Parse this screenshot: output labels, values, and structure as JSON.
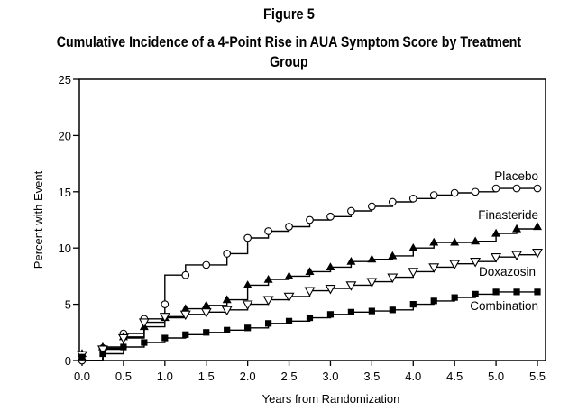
{
  "figure_label": "Figure 5",
  "chart_data": {
    "type": "line",
    "title": "Cumulative Incidence of a 4-Point Rise in AUA Symptom Score by Treatment Group",
    "xlabel": "Years from Randomization",
    "ylabel": "Percent with Event",
    "xlim": [
      0,
      5.5
    ],
    "ylim": [
      0,
      25
    ],
    "x_ticks": [
      0.0,
      0.5,
      1.0,
      1.5,
      2.0,
      2.5,
      3.0,
      3.5,
      4.0,
      4.5,
      5.0,
      5.5
    ],
    "x_tick_labels": [
      "0.0",
      "0.5",
      "1.0",
      "1.5",
      "2.0",
      "2.5",
      "3.0",
      "3.5",
      "4.0",
      "4.5",
      "5.0",
      "5.5"
    ],
    "y_ticks": [
      0,
      5,
      10,
      15,
      20,
      25
    ],
    "y_tick_labels": [
      "0",
      "5",
      "10",
      "15",
      "20",
      "25"
    ],
    "grid": false,
    "line_style": "step",
    "series": [
      {
        "name": "Placebo",
        "marker": "open-circle",
        "steps": [
          [
            0,
            0
          ],
          [
            0.25,
            1.1
          ],
          [
            0.5,
            2.4
          ],
          [
            0.75,
            3.7
          ],
          [
            1.0,
            5.0
          ],
          [
            1.0,
            7.6
          ],
          [
            1.25,
            7.6
          ],
          [
            1.25,
            8.5
          ],
          [
            1.5,
            8.5
          ],
          [
            1.75,
            9.5
          ],
          [
            2.0,
            10.9
          ],
          [
            2.25,
            11.5
          ],
          [
            2.5,
            11.9
          ],
          [
            2.75,
            12.5
          ],
          [
            3.0,
            12.8
          ],
          [
            3.25,
            13.3
          ],
          [
            3.5,
            13.7
          ],
          [
            3.75,
            14.1
          ],
          [
            4.0,
            14.4
          ],
          [
            4.25,
            14.7
          ],
          [
            4.5,
            14.9
          ],
          [
            4.75,
            15.0
          ],
          [
            5.0,
            15.3
          ],
          [
            5.5,
            15.3
          ]
        ],
        "points": [
          [
            0,
            0
          ],
          [
            0.25,
            1.1
          ],
          [
            0.5,
            2.4
          ],
          [
            0.75,
            3.7
          ],
          [
            1.0,
            5.0
          ],
          [
            1.25,
            7.6
          ],
          [
            1.5,
            8.5
          ],
          [
            1.75,
            9.5
          ],
          [
            2.0,
            10.9
          ],
          [
            2.25,
            11.5
          ],
          [
            2.5,
            11.9
          ],
          [
            2.75,
            12.5
          ],
          [
            3.0,
            12.8
          ],
          [
            3.25,
            13.3
          ],
          [
            3.5,
            13.7
          ],
          [
            3.75,
            14.1
          ],
          [
            4.0,
            14.4
          ],
          [
            4.25,
            14.7
          ],
          [
            4.5,
            14.9
          ],
          [
            4.75,
            15.0
          ],
          [
            5.0,
            15.3
          ],
          [
            5.25,
            15.3
          ],
          [
            5.5,
            15.3
          ]
        ]
      },
      {
        "name": "Finasteride",
        "marker": "filled-triangle-up",
        "steps": [
          [
            0,
            0
          ],
          [
            0.25,
            1.2
          ],
          [
            0.5,
            2.1
          ],
          [
            0.75,
            3.0
          ],
          [
            1.0,
            3.8
          ],
          [
            1.25,
            4.6
          ],
          [
            1.5,
            4.9
          ],
          [
            1.75,
            5.4
          ],
          [
            2.0,
            6.7
          ],
          [
            2.25,
            7.2
          ],
          [
            2.5,
            7.5
          ],
          [
            2.75,
            7.9
          ],
          [
            3.0,
            8.3
          ],
          [
            3.25,
            8.8
          ],
          [
            3.5,
            9.0
          ],
          [
            3.75,
            9.3
          ],
          [
            4.0,
            10.0
          ],
          [
            4.25,
            10.5
          ],
          [
            4.5,
            10.5
          ],
          [
            4.75,
            10.6
          ],
          [
            5.0,
            11.3
          ],
          [
            5.25,
            11.7
          ],
          [
            5.5,
            11.9
          ]
        ],
        "points": [
          [
            0,
            0.6
          ],
          [
            0.25,
            1.2
          ],
          [
            0.5,
            2.1
          ],
          [
            0.75,
            3.0
          ],
          [
            1.0,
            3.8
          ],
          [
            1.25,
            4.6
          ],
          [
            1.5,
            4.9
          ],
          [
            1.75,
            5.4
          ],
          [
            2.0,
            6.7
          ],
          [
            2.25,
            7.2
          ],
          [
            2.5,
            7.5
          ],
          [
            2.75,
            7.9
          ],
          [
            3.0,
            8.3
          ],
          [
            3.25,
            8.8
          ],
          [
            3.5,
            9.0
          ],
          [
            3.75,
            9.3
          ],
          [
            4.0,
            10.0
          ],
          [
            4.25,
            10.5
          ],
          [
            4.5,
            10.5
          ],
          [
            4.75,
            10.6
          ],
          [
            5.0,
            11.3
          ],
          [
            5.25,
            11.7
          ],
          [
            5.5,
            11.9
          ]
        ]
      },
      {
        "name": "Doxazosin",
        "marker": "open-triangle-down",
        "steps": [
          [
            0,
            0
          ],
          [
            0.25,
            1.0
          ],
          [
            0.5,
            2.0
          ],
          [
            0.75,
            3.4
          ],
          [
            1.0,
            3.9
          ],
          [
            1.25,
            4.1
          ],
          [
            1.5,
            4.3
          ],
          [
            1.75,
            4.5
          ],
          [
            2.0,
            5.0
          ],
          [
            2.25,
            5.4
          ],
          [
            2.5,
            5.7
          ],
          [
            2.75,
            6.2
          ],
          [
            3.0,
            6.4
          ],
          [
            3.25,
            6.7
          ],
          [
            3.5,
            7.0
          ],
          [
            3.75,
            7.4
          ],
          [
            4.0,
            7.9
          ],
          [
            4.25,
            8.3
          ],
          [
            4.5,
            8.6
          ],
          [
            4.75,
            8.8
          ],
          [
            5.0,
            9.2
          ],
          [
            5.25,
            9.4
          ],
          [
            5.5,
            9.6
          ]
        ],
        "points": [
          [
            0,
            0.5
          ],
          [
            0.25,
            1.0
          ],
          [
            0.5,
            2.0
          ],
          [
            0.75,
            3.4
          ],
          [
            1.0,
            3.9
          ],
          [
            1.25,
            4.1
          ],
          [
            1.5,
            4.3
          ],
          [
            1.75,
            4.5
          ],
          [
            2.0,
            5.0
          ],
          [
            2.25,
            5.4
          ],
          [
            2.5,
            5.7
          ],
          [
            2.75,
            6.2
          ],
          [
            3.0,
            6.4
          ],
          [
            3.25,
            6.7
          ],
          [
            3.5,
            7.0
          ],
          [
            3.75,
            7.4
          ],
          [
            4.0,
            7.9
          ],
          [
            4.25,
            8.3
          ],
          [
            4.5,
            8.6
          ],
          [
            4.75,
            8.8
          ],
          [
            5.0,
            9.2
          ],
          [
            5.25,
            9.4
          ],
          [
            5.5,
            9.6
          ]
        ]
      },
      {
        "name": "Combination",
        "marker": "filled-square",
        "steps": [
          [
            0,
            0
          ],
          [
            0.25,
            0.6
          ],
          [
            0.5,
            1.2
          ],
          [
            0.75,
            1.6
          ],
          [
            1.0,
            2.0
          ],
          [
            1.25,
            2.3
          ],
          [
            1.5,
            2.5
          ],
          [
            1.75,
            2.7
          ],
          [
            2.0,
            2.9
          ],
          [
            2.25,
            3.3
          ],
          [
            2.5,
            3.5
          ],
          [
            2.75,
            3.8
          ],
          [
            3.0,
            4.1
          ],
          [
            3.25,
            4.3
          ],
          [
            3.5,
            4.4
          ],
          [
            3.75,
            4.5
          ],
          [
            4.0,
            5.0
          ],
          [
            4.25,
            5.3
          ],
          [
            4.5,
            5.6
          ],
          [
            4.75,
            5.9
          ],
          [
            5.0,
            6.1
          ],
          [
            5.5,
            6.1
          ]
        ],
        "points": [
          [
            0,
            0.3
          ],
          [
            0.25,
            0.6
          ],
          [
            0.5,
            1.2
          ],
          [
            0.75,
            1.6
          ],
          [
            1.0,
            2.0
          ],
          [
            1.25,
            2.3
          ],
          [
            1.5,
            2.5
          ],
          [
            1.75,
            2.7
          ],
          [
            2.0,
            2.9
          ],
          [
            2.25,
            3.3
          ],
          [
            2.5,
            3.5
          ],
          [
            2.75,
            3.8
          ],
          [
            3.0,
            4.1
          ],
          [
            3.25,
            4.3
          ],
          [
            3.5,
            4.4
          ],
          [
            3.75,
            4.5
          ],
          [
            4.0,
            5.0
          ],
          [
            4.25,
            5.3
          ],
          [
            4.5,
            5.6
          ],
          [
            4.75,
            5.9
          ],
          [
            5.0,
            6.1
          ],
          [
            5.25,
            6.1
          ],
          [
            5.5,
            6.1
          ]
        ]
      }
    ]
  }
}
